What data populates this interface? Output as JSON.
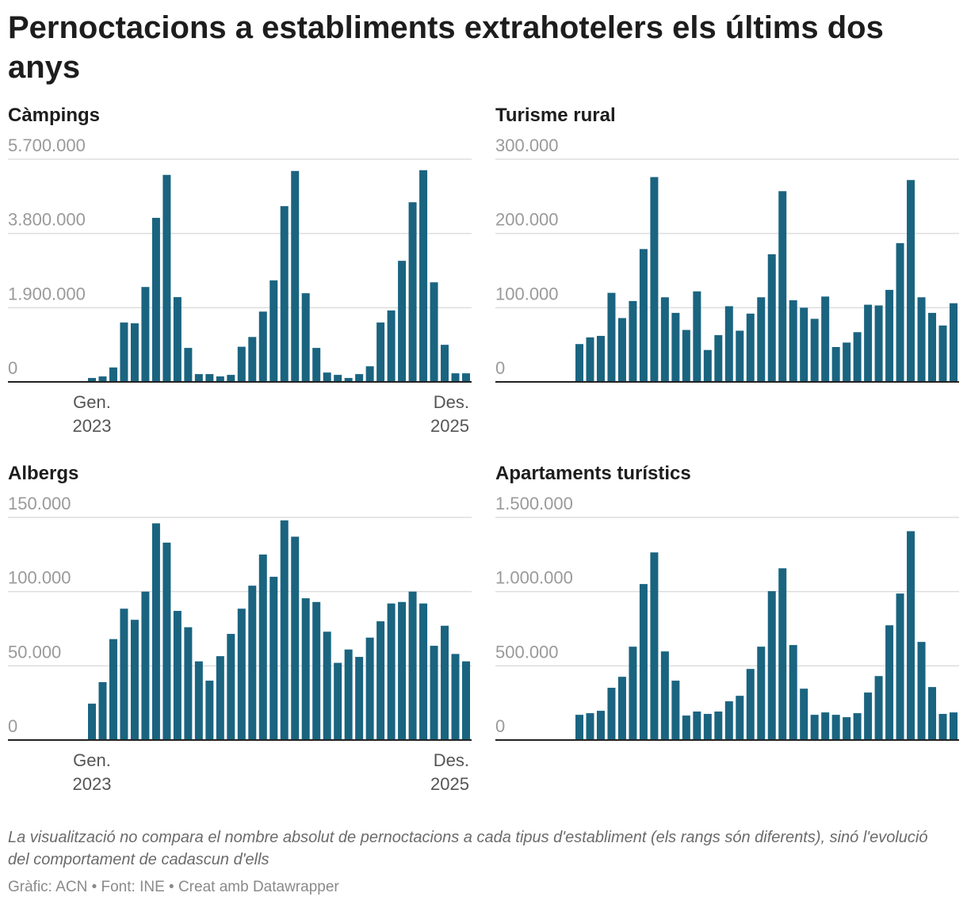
{
  "title": "Pernoctacions a establiments extrahotelers els últims dos anys",
  "note": "La visualització no compara el nombre absolut de pernoctacions a cada tipus d'establiment (els rangs són diferents), sinó l'evolució del comportament de cadascun d'ells",
  "source": "Gràfic: ACN • Font: INE • Creat amb Datawrapper",
  "colors": {
    "bar": "#1a6480",
    "grid": "#dddddd",
    "tick_text": "#9a9a9a",
    "axis": "#222222"
  },
  "chart_data": [
    {
      "type": "bar",
      "title": "Càmpings",
      "x_start": "2023-01",
      "x_end": "2025-12",
      "x_tick_labels": [
        [
          "Gen.",
          "2023"
        ],
        [
          "Des.",
          "2025"
        ]
      ],
      "ylim": [
        0,
        5700000
      ],
      "y_ticks": [
        0,
        1900000,
        3800000,
        5700000
      ],
      "y_tick_labels": [
        "0",
        "1.900.000",
        "3.800.000",
        "5.700.000"
      ],
      "grid": true,
      "values": [
        100000,
        140000,
        370000,
        1520000,
        1500000,
        2430000,
        4200000,
        5300000,
        2170000,
        870000,
        200000,
        200000,
        140000,
        180000,
        900000,
        1150000,
        1800000,
        2600000,
        4500000,
        5400000,
        2270000,
        870000,
        240000,
        180000,
        100000,
        200000,
        400000,
        1520000,
        1830000,
        3100000,
        4600000,
        5420000,
        2550000,
        950000,
        220000,
        220000
      ]
    },
    {
      "type": "bar",
      "title": "Turisme rural",
      "x_start": "2023-01",
      "x_end": "2025-12",
      "ylim": [
        0,
        300000
      ],
      "y_ticks": [
        0,
        100000,
        200000,
        300000
      ],
      "y_tick_labels": [
        "0",
        "100.000",
        "200.000",
        "300.000"
      ],
      "grid": true,
      "values": [
        51000,
        60000,
        62000,
        120000,
        86000,
        109000,
        179000,
        276000,
        114000,
        93000,
        70000,
        122000,
        43000,
        63000,
        102000,
        69000,
        92000,
        114000,
        172000,
        257000,
        110000,
        100000,
        85000,
        115000,
        47000,
        53000,
        67000,
        104000,
        103000,
        124000,
        187000,
        272000,
        114000,
        93000,
        76000,
        106000
      ]
    },
    {
      "type": "bar",
      "title": "Albergs",
      "x_start": "2023-01",
      "x_end": "2025-12",
      "x_tick_labels": [
        [
          "Gen.",
          "2023"
        ],
        [
          "Des.",
          "2025"
        ]
      ],
      "ylim": [
        0,
        150000
      ],
      "y_ticks": [
        0,
        50000,
        100000,
        150000
      ],
      "y_tick_labels": [
        "0",
        "50.000",
        "100.000",
        "150.000"
      ],
      "grid": true,
      "values": [
        24500,
        39000,
        68000,
        88500,
        81000,
        100000,
        146000,
        133000,
        87000,
        76000,
        53000,
        40000,
        56500,
        71500,
        88500,
        104000,
        125000,
        110000,
        148000,
        137000,
        95500,
        93000,
        73000,
        52000,
        61000,
        56000,
        69000,
        80000,
        92000,
        93000,
        100000,
        92000,
        63500,
        77000,
        58000,
        53000
      ]
    },
    {
      "type": "bar",
      "title": "Apartaments turístics",
      "x_start": "2023-01",
      "x_end": "2025-12",
      "ylim": [
        0,
        1500000
      ],
      "y_ticks": [
        0,
        500000,
        1000000,
        1500000
      ],
      "y_tick_labels": [
        "0",
        "500.000",
        "1.000.000",
        "1.500.000"
      ],
      "grid": true,
      "values": [
        170000,
        181000,
        197000,
        352000,
        426000,
        629000,
        1051000,
        1264000,
        597000,
        400000,
        165000,
        192000,
        176000,
        192000,
        261000,
        298000,
        479000,
        629000,
        1003000,
        1157000,
        640000,
        346000,
        170000,
        186000,
        170000,
        154000,
        181000,
        320000,
        431000,
        773000,
        987000,
        1407000,
        661000,
        357000,
        176000,
        186000
      ]
    }
  ]
}
